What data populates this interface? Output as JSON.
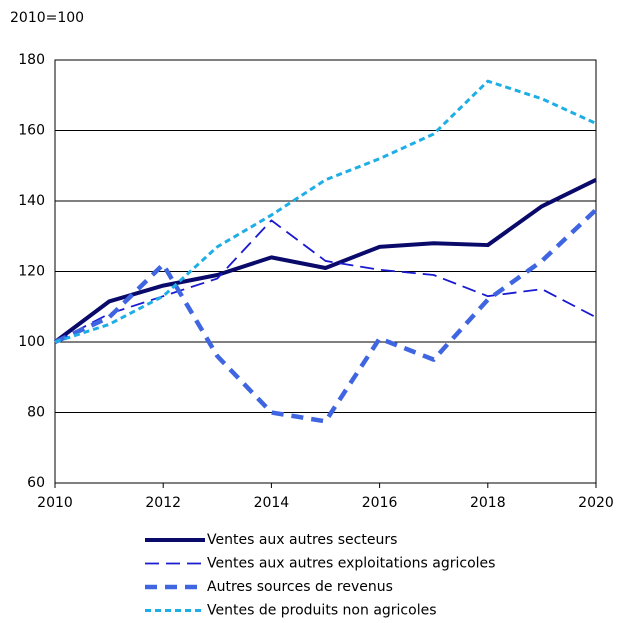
{
  "chart_data": {
    "type": "line",
    "y_axis_label": "2010=100",
    "x": [
      2010,
      2011,
      2012,
      2013,
      2014,
      2015,
      2016,
      2017,
      2018,
      2019,
      2020
    ],
    "series": [
      {
        "name": "Ventes aux autres secteurs",
        "color": "#0a0a6b",
        "values": [
          100,
          111.5,
          116,
          119,
          124,
          121,
          127,
          128,
          127.5,
          138.5,
          146
        ]
      },
      {
        "name": "Ventes aux autres exploitations agricoles",
        "color": "#1a1ad0",
        "values": [
          100,
          108,
          113,
          118,
          134.5,
          123,
          120.5,
          119,
          113,
          115,
          107
        ]
      },
      {
        "name": "Autres sources de revenus",
        "color": "#3f66e0",
        "values": [
          100,
          107,
          122,
          96,
          80,
          77.5,
          101,
          95,
          112,
          123,
          137.5
        ]
      },
      {
        "name": "Ventes de produits non agricoles",
        "color": "#1eaee6",
        "values": [
          100,
          105,
          113,
          127,
          136,
          146,
          152,
          159,
          174,
          169,
          162
        ]
      }
    ],
    "xlim": [
      2010,
      2020
    ],
    "xticks": [
      2010,
      2012,
      2014,
      2016,
      2018,
      2020
    ],
    "ylim": [
      60,
      180
    ],
    "yticks": [
      60,
      80,
      100,
      120,
      140,
      160,
      180
    ],
    "grid": true,
    "legend": "bottom"
  }
}
